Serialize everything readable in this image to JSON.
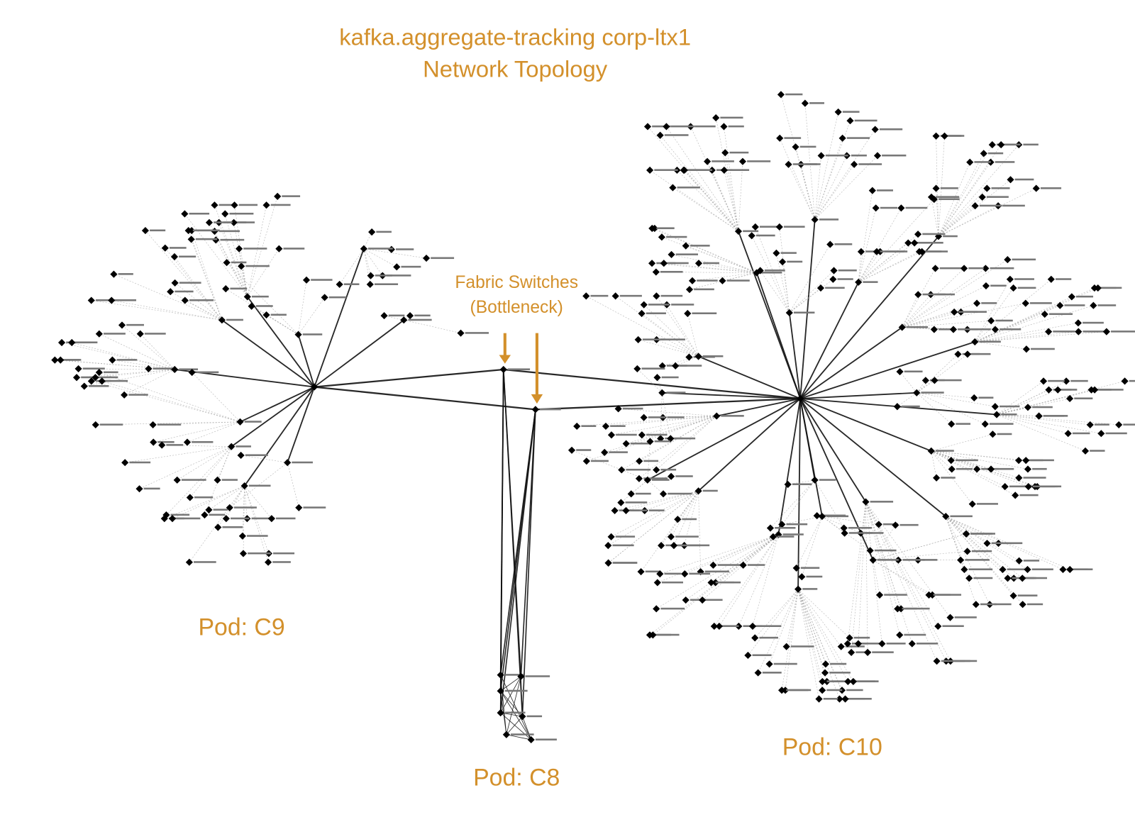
{
  "header": {
    "title": "kafka.aggregate-tracking corp-ltx1",
    "subtitle": "Network Topology"
  },
  "annotation": {
    "lines": [
      "Fabric Switches",
      "(Bottleneck)"
    ]
  },
  "pods": [
    {
      "label": "Pod: C9"
    },
    {
      "label": "Pod: C8"
    },
    {
      "label": "Pod: C10"
    }
  ]
}
